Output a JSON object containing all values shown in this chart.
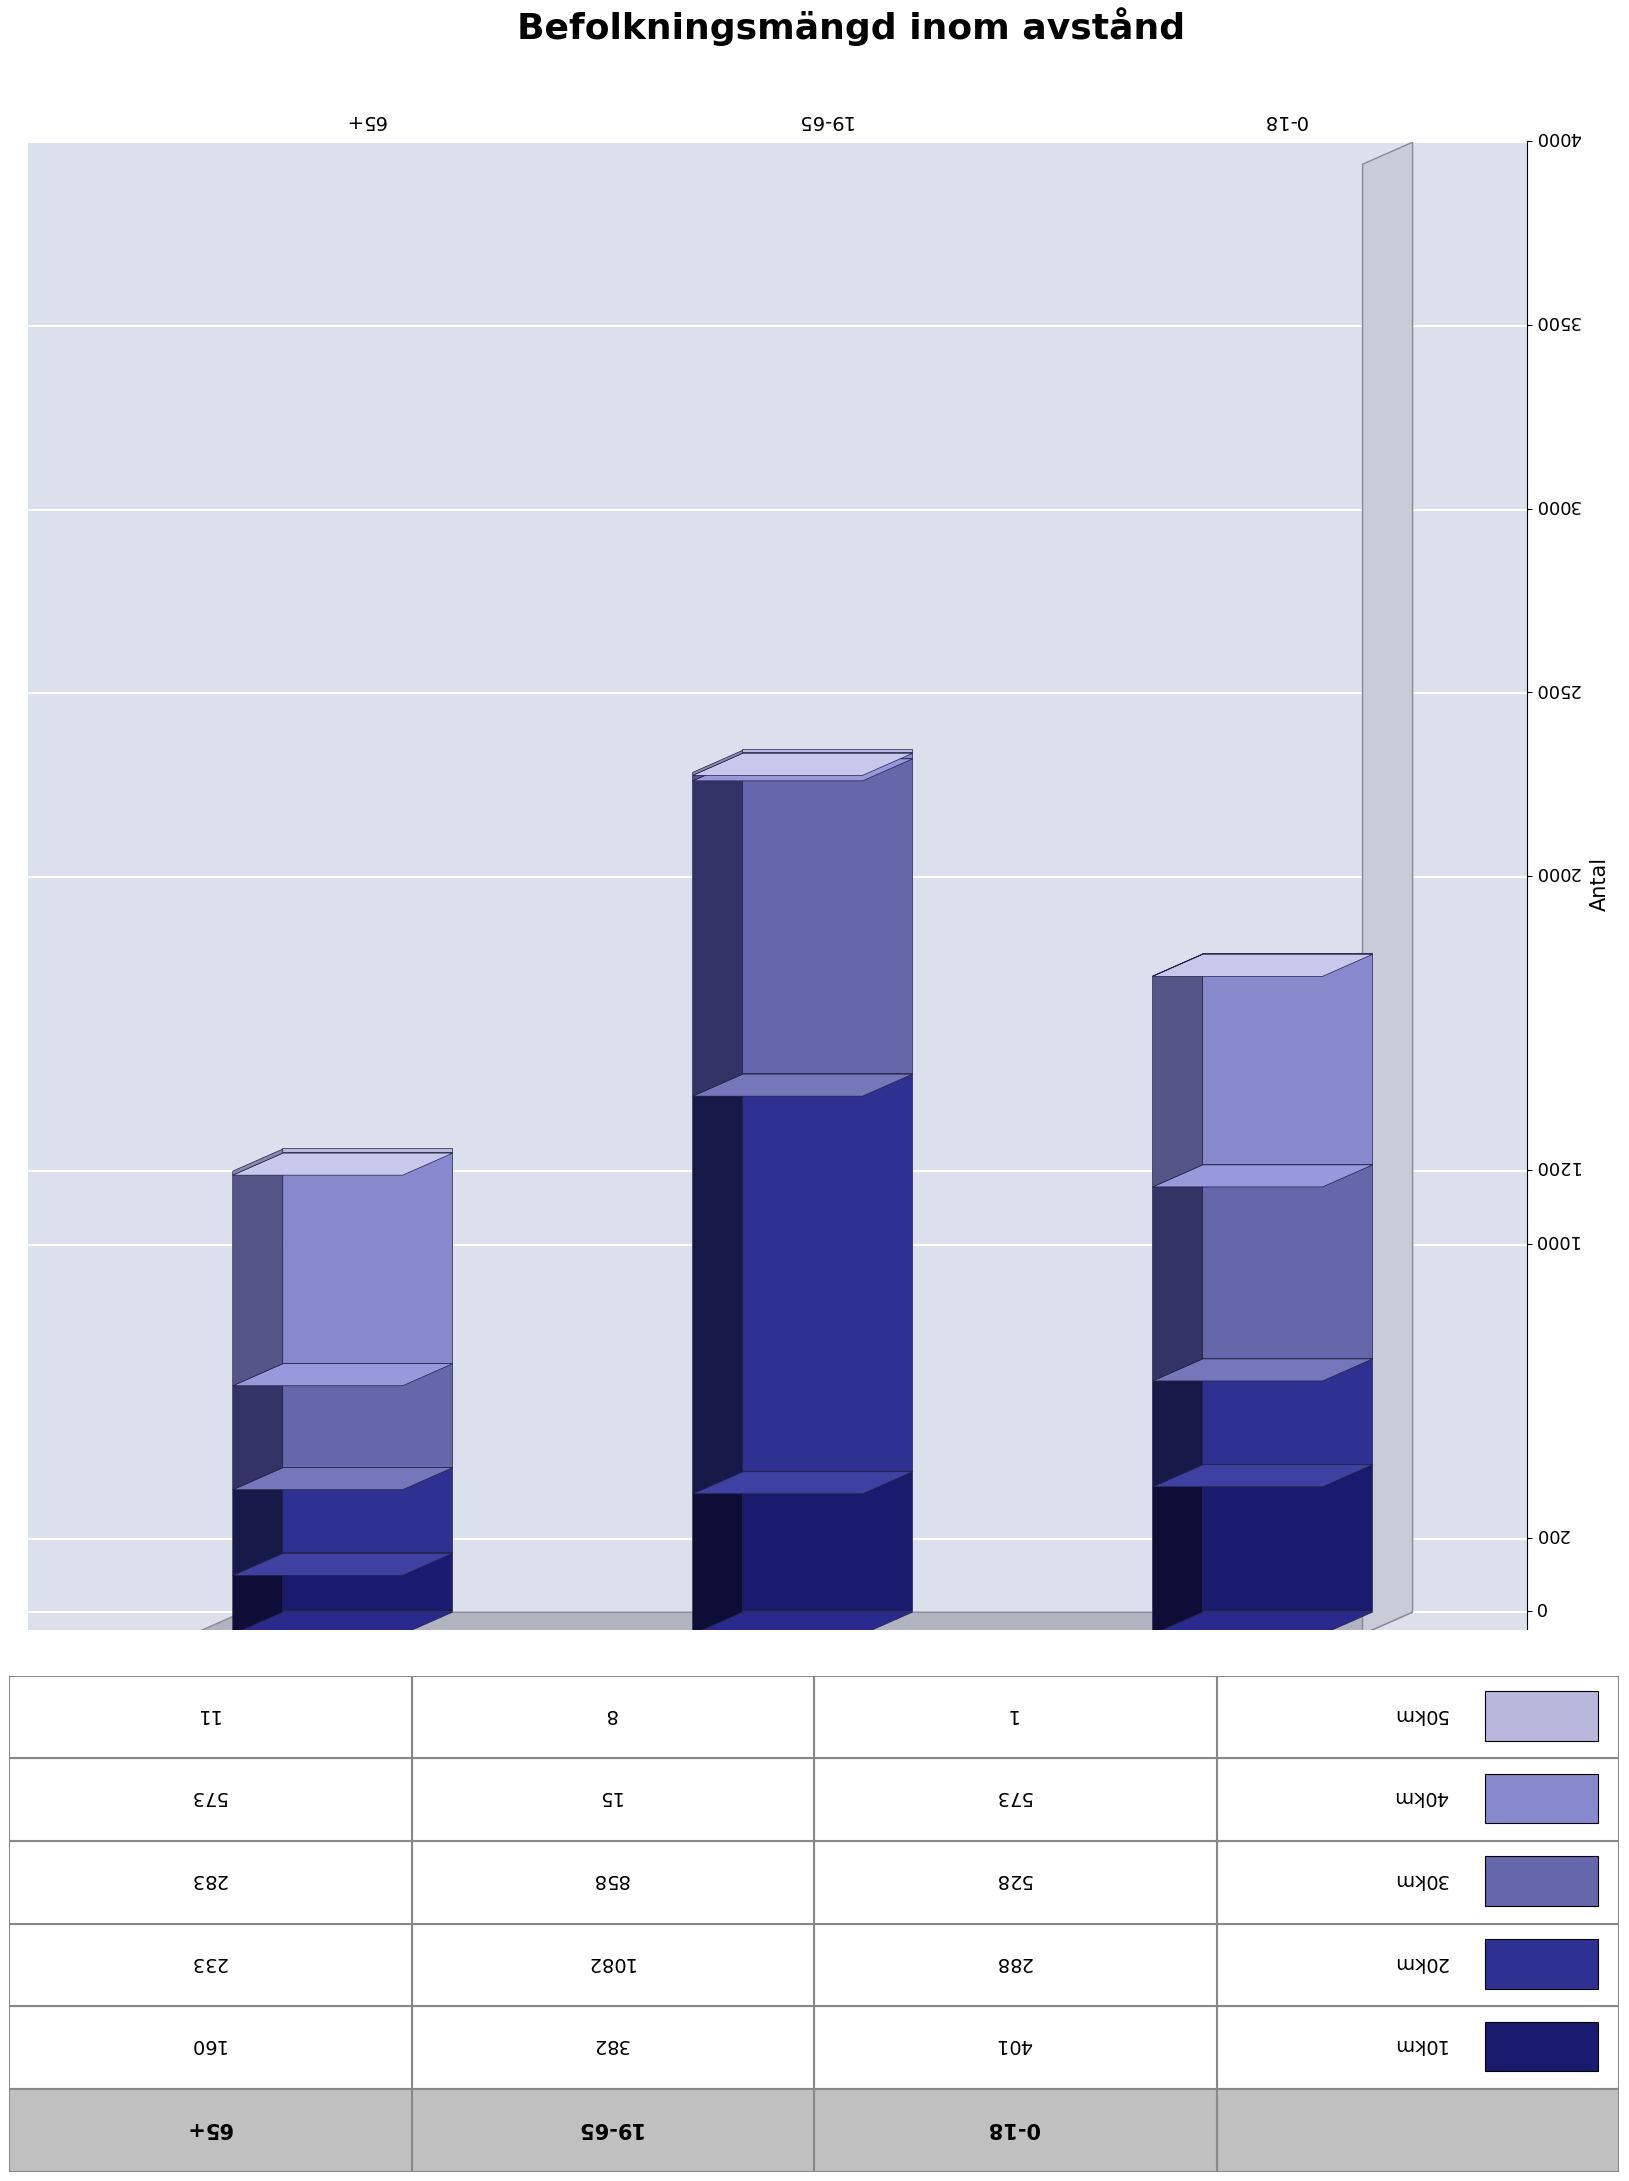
{
  "title": "Befolkningsmängd inom avstånd",
  "ylabel": "Antal",
  "categories": [
    "0-18",
    "19-65",
    "65+"
  ],
  "legend_labels": [
    "10km",
    "20km",
    "30km",
    "40km",
    "50km"
  ],
  "table_values": [
    [
      401,
      382,
      160
    ],
    [
      288,
      1082,
      233
    ],
    [
      528,
      858,
      283
    ],
    [
      573,
      15,
      573
    ],
    [
      1,
      8,
      11
    ]
  ],
  "bar_data": [
    [
      401,
      288,
      528,
      573,
      1
    ],
    [
      382,
      1082,
      858,
      15,
      8
    ],
    [
      160,
      233,
      283,
      573,
      11
    ]
  ],
  "colors": [
    "#1a1a6e",
    "#2e3192",
    "#6666aa",
    "#8888cc",
    "#b8b8dd"
  ],
  "dark_colors": [
    "#0d0d37",
    "#171949",
    "#333366",
    "#555588",
    "#8888aa"
  ],
  "top_colors": [
    "#2a2a8e",
    "#3e41a2",
    "#7676ba",
    "#9898dc",
    "#c8c8ed"
  ],
  "background_color": "#dce0ec",
  "floor_color": "#b0b4c0",
  "wall_color": "#c8ccd8",
  "yticks": [
    0,
    200,
    1000,
    1200,
    2000,
    2500,
    3000,
    3500,
    4000
  ],
  "ylim": 4000,
  "table_header_bg": "#c0c0c0",
  "table_row_bg": "#ffffff",
  "table_border": "#888888"
}
